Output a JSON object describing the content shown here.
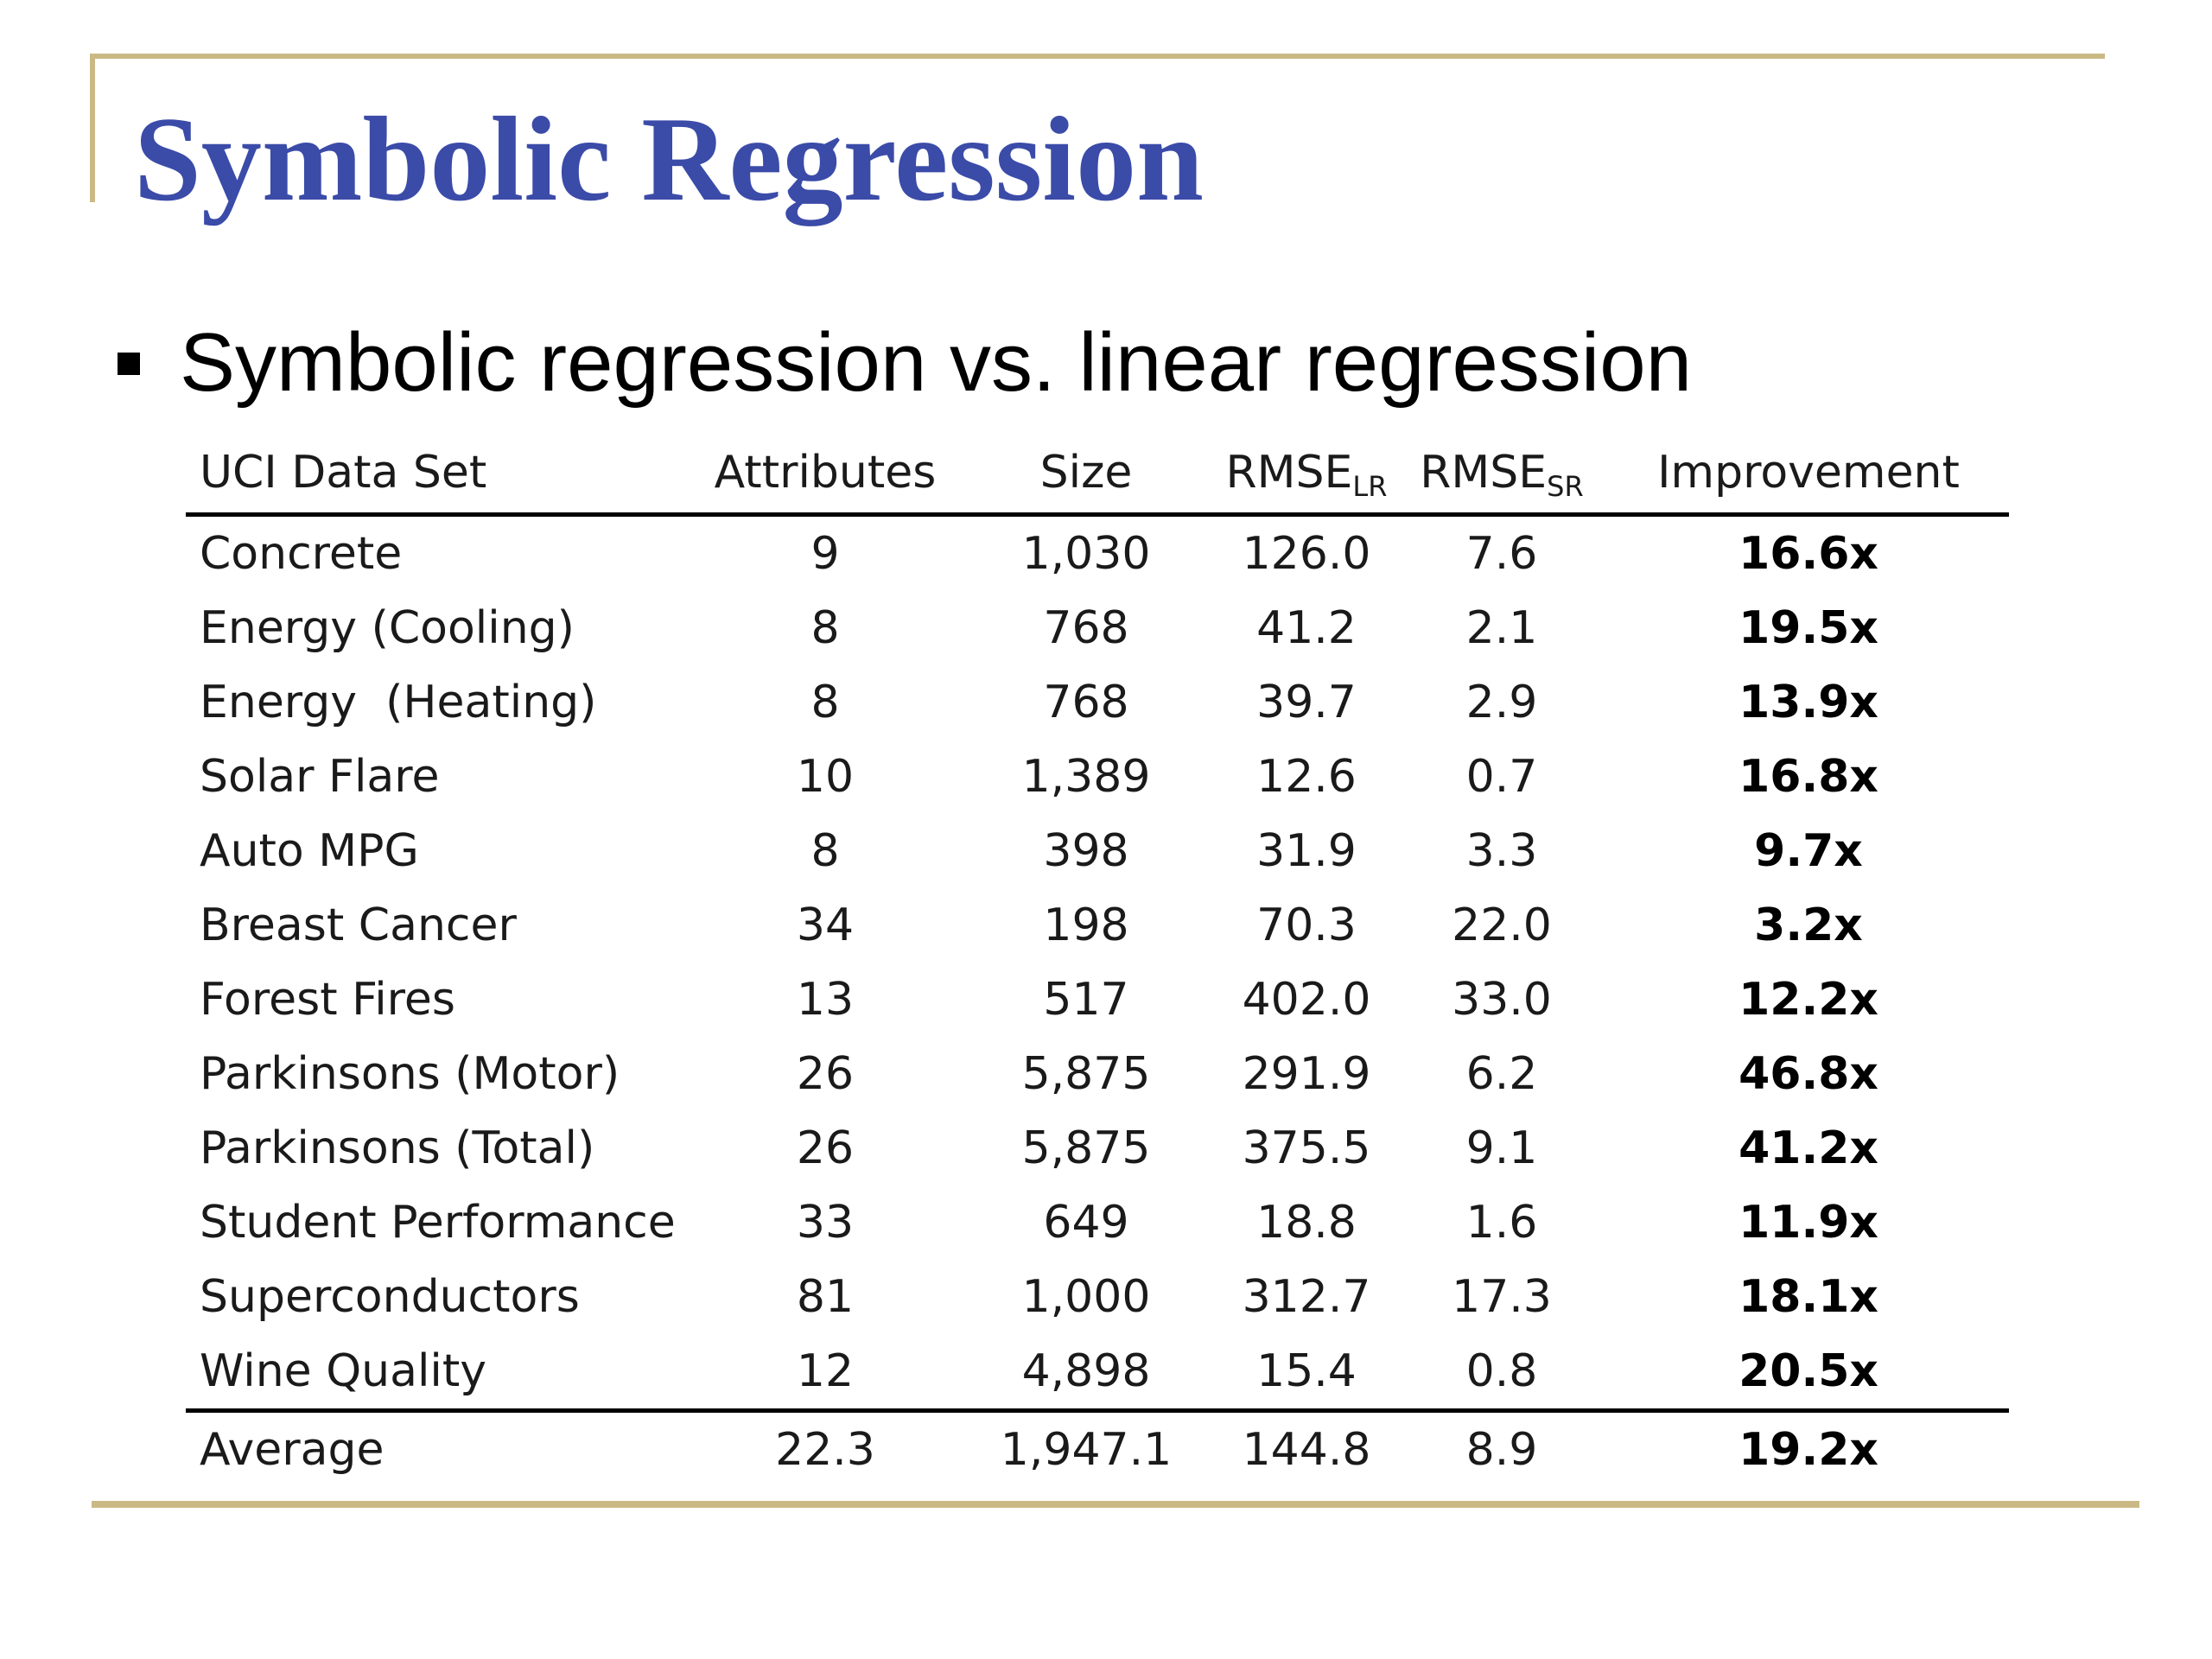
{
  "slide": {
    "title": "Symbolic Regression",
    "bullet": "Symbolic regression vs. linear regression"
  },
  "table": {
    "headers": {
      "dataset": "UCI Data Set",
      "attributes": "Attributes",
      "size": "Size",
      "rmse_lr": "RMSE",
      "rmse_lr_sub": "LR",
      "rmse_sr": "RMSE",
      "rmse_sr_sub": "SR",
      "improvement": "Improvement"
    },
    "rows": [
      {
        "name": "Concrete",
        "attributes": "9",
        "size": "1,030",
        "rmse_lr": "126.0",
        "rmse_sr": "7.6",
        "improvement": "16.6x"
      },
      {
        "name": "Energy (Cooling)",
        "attributes": "8",
        "size": "768",
        "rmse_lr": "41.2",
        "rmse_sr": "2.1",
        "improvement": "19.5x"
      },
      {
        "name": "Energy  (Heating)",
        "attributes": "8",
        "size": "768",
        "rmse_lr": "39.7",
        "rmse_sr": "2.9",
        "improvement": "13.9x"
      },
      {
        "name": "Solar Flare",
        "attributes": "10",
        "size": "1,389",
        "rmse_lr": "12.6",
        "rmse_sr": "0.7",
        "improvement": "16.8x"
      },
      {
        "name": "Auto MPG",
        "attributes": "8",
        "size": "398",
        "rmse_lr": "31.9",
        "rmse_sr": "3.3",
        "improvement": "9.7x"
      },
      {
        "name": "Breast Cancer",
        "attributes": "34",
        "size": "198",
        "rmse_lr": "70.3",
        "rmse_sr": "22.0",
        "improvement": "3.2x"
      },
      {
        "name": "Forest Fires",
        "attributes": "13",
        "size": "517",
        "rmse_lr": "402.0",
        "rmse_sr": "33.0",
        "improvement": "12.2x"
      },
      {
        "name": "Parkinsons (Motor)",
        "attributes": "26",
        "size": "5,875",
        "rmse_lr": "291.9",
        "rmse_sr": "6.2",
        "improvement": "46.8x"
      },
      {
        "name": "Parkinsons (Total)",
        "attributes": "26",
        "size": "5,875",
        "rmse_lr": "375.5",
        "rmse_sr": "9.1",
        "improvement": "41.2x"
      },
      {
        "name": "Student Performance",
        "attributes": "33",
        "size": "649",
        "rmse_lr": "18.8",
        "rmse_sr": "1.6",
        "improvement": "11.9x"
      },
      {
        "name": "Superconductors",
        "attributes": "81",
        "size": "1,000",
        "rmse_lr": "312.7",
        "rmse_sr": "17.3",
        "improvement": "18.1x"
      },
      {
        "name": "Wine Quality",
        "attributes": "12",
        "size": "4,898",
        "rmse_lr": "15.4",
        "rmse_sr": "0.8",
        "improvement": "20.5x"
      }
    ],
    "average": {
      "name": "Average",
      "attributes": "22.3",
      "size": "1,947.1",
      "rmse_lr": "144.8",
      "rmse_sr": "8.9",
      "improvement": "19.2x"
    }
  }
}
